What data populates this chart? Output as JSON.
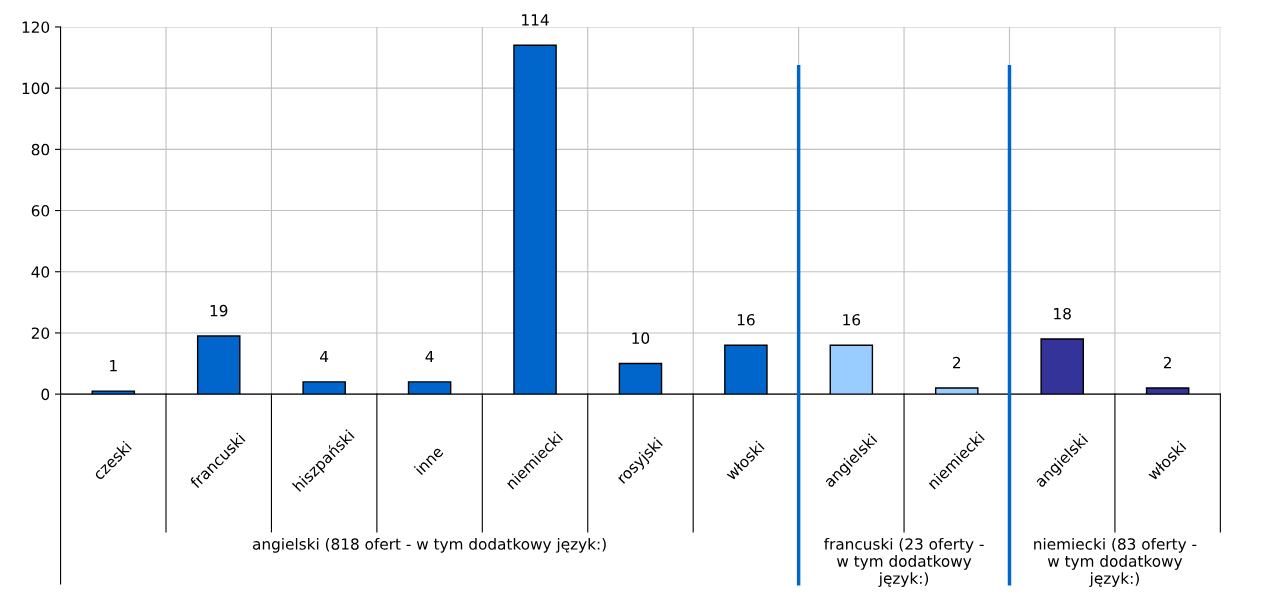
{
  "chart_data": {
    "type": "bar",
    "categories": [
      "czeski",
      "francuski",
      "hiszpański",
      "inne",
      "niemiecki",
      "rosyjski",
      "włoski",
      "angielski",
      "niemiecki",
      "angielski",
      "włoski"
    ],
    "values": [
      1,
      19,
      4,
      4,
      114,
      10,
      16,
      16,
      2,
      18,
      2
    ],
    "colors": [
      "#0066cc",
      "#0066cc",
      "#0066cc",
      "#0066cc",
      "#0066cc",
      "#0066cc",
      "#0066cc",
      "#99ccff",
      "#99ccff",
      "#333399",
      "#333399"
    ],
    "ylim": [
      0,
      120
    ],
    "yticks": [
      0,
      20,
      40,
      60,
      80,
      100,
      120
    ],
    "grid": true,
    "data_labels": true,
    "annotations": [
      "angielski (818 ofert - w tym dodatkowy język:)",
      "francuski (23 oferty - w tym dodatkowy język:)",
      "niemiecki (83 oferty - w tym dodatkowy język:)"
    ]
  }
}
